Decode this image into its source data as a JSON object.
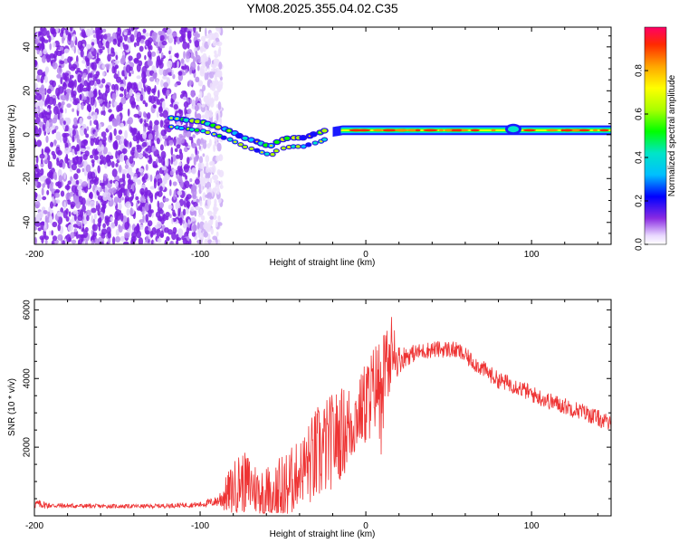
{
  "title": "YM08.2025.355.04.02.C35",
  "chart_data": [
    {
      "type": "heatmap",
      "name": "spectrogram",
      "xlabel": "Height of straight line (km)",
      "ylabel": "Frequency (Hz)",
      "xlim": [
        -200,
        148
      ],
      "ylim": [
        -50,
        49
      ],
      "xticks": [
        -200,
        -100,
        0,
        100
      ],
      "yticks": [
        -40,
        -20,
        0,
        20,
        40
      ],
      "noise_region_x": [
        -200,
        -91
      ],
      "signal_track": {
        "x": [
          -118,
          -108,
          -98,
          -90,
          -82,
          -74,
          -66,
          -58,
          -52,
          -46,
          -38,
          -30,
          -22,
          -14,
          -6,
          0,
          10,
          20,
          40,
          60,
          80,
          90,
          100,
          120,
          148
        ],
        "y": [
          6,
          5,
          4,
          2,
          0,
          -3,
          -5,
          -7,
          -4,
          -3,
          -3,
          -1,
          1,
          2,
          2,
          2,
          2,
          2,
          2,
          2,
          2,
          2,
          2,
          2,
          2
        ]
      },
      "colorbar": {
        "label": "Normalized spectral amplitude",
        "range": [
          0,
          1
        ],
        "ticks": [
          0.0,
          0.2,
          0.4,
          0.6,
          0.8
        ]
      }
    },
    {
      "type": "line",
      "name": "snr",
      "xlabel": "Height of straight line (km)",
      "ylabel": "SNR (10 * v/v)",
      "xlim": [
        -200,
        148
      ],
      "ylim": [
        0,
        6300
      ],
      "xticks": [
        -200,
        -100,
        0,
        100
      ],
      "yticks": [
        2000,
        4000,
        6000
      ],
      "color": "#ee3333",
      "envelope": {
        "x": [
          -200,
          -190,
          -160,
          -130,
          -100,
          -90,
          -82,
          -76,
          -70,
          -64,
          -56,
          -50,
          -40,
          -30,
          -20,
          -10,
          -4,
          0,
          6,
          12,
          18,
          24,
          30,
          40,
          50,
          56,
          60,
          70,
          80,
          90,
          100,
          110,
          120,
          130,
          140,
          148
        ],
        "base": [
          350,
          300,
          280,
          280,
          330,
          420,
          700,
          1000,
          900,
          700,
          750,
          650,
          1300,
          1700,
          2200,
          2600,
          3000,
          3300,
          3800,
          4300,
          4500,
          4650,
          4750,
          4850,
          4850,
          4800,
          4650,
          4300,
          3950,
          3800,
          3550,
          3350,
          3200,
          3050,
          2850,
          2650
        ],
        "noise": [
          150,
          80,
          60,
          60,
          80,
          150,
          700,
          900,
          900,
          700,
          800,
          1200,
          900,
          1500,
          1400,
          1300,
          1000,
          1300,
          1300,
          1200,
          500,
          300,
          250,
          250,
          250,
          250,
          250,
          250,
          250,
          250,
          250,
          250,
          250,
          250,
          250,
          250
        ]
      }
    }
  ]
}
